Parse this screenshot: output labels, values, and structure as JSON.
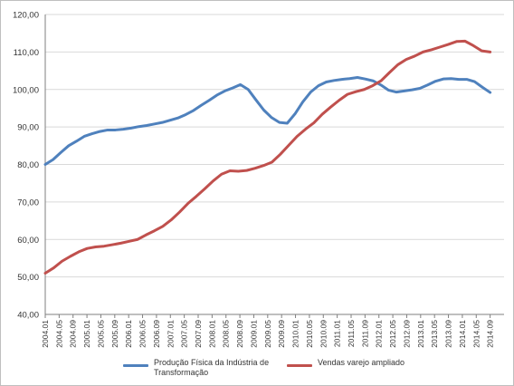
{
  "chart_data": {
    "type": "line",
    "title": "",
    "xlabel": "",
    "ylabel": "",
    "ylim": [
      40,
      120
    ],
    "yticks": [
      "40,00",
      "50,00",
      "60,00",
      "70,00",
      "80,00",
      "90,00",
      "100,00",
      "110,00",
      "120,00"
    ],
    "xticks": [
      "2004.01",
      "2004.05",
      "2004.09",
      "2005.01",
      "2005.05",
      "2005.09",
      "2006.01",
      "2006.05",
      "2006.09",
      "2007.01",
      "2007.05",
      "2007.09",
      "2008.01",
      "2008.05",
      "2008.09",
      "2009.01",
      "2009.05",
      "2009.09",
      "2010.01",
      "2010.05",
      "2010.09",
      "2011.01",
      "2011.05",
      "2011.09",
      "2012.01",
      "2012.05",
      "2012.09",
      "2013.01",
      "2013.05",
      "2013.09",
      "2014.01",
      "2014.05",
      "2014.09"
    ],
    "grid": "horizontal",
    "legend_position": "bottom",
    "series": [
      {
        "name": "Produção Física da Indústria de Transformação",
        "color": "#4f81bd",
        "values": [
          80.0,
          81.3,
          83.2,
          85.0,
          86.2,
          87.5,
          88.2,
          88.8,
          89.2,
          89.2,
          89.4,
          89.7,
          90.1,
          90.4,
          90.8,
          91.2,
          91.8,
          92.4,
          93.3,
          94.4,
          95.8,
          97.1,
          98.5,
          99.6,
          100.4,
          101.3,
          100.0,
          97.2,
          94.5,
          92.5,
          91.2,
          91.0,
          93.5,
          96.7,
          99.3,
          101.0,
          102.0,
          102.4,
          102.7,
          102.9,
          103.2,
          102.8,
          102.3,
          101.2,
          99.8,
          99.3,
          99.6,
          99.9,
          100.3,
          101.2,
          102.2,
          102.8,
          102.9,
          102.7,
          102.7,
          102.1,
          100.6,
          99.2
        ]
      },
      {
        "name": "Vendas varejo ampliado",
        "color": "#c0504d",
        "values": [
          51.0,
          52.4,
          54.2,
          55.5,
          56.7,
          57.6,
          58.0,
          58.2,
          58.6,
          59.0,
          59.5,
          60.0,
          61.2,
          62.3,
          63.5,
          65.2,
          67.3,
          69.6,
          71.5,
          73.5,
          75.6,
          77.4,
          78.3,
          78.2,
          78.4,
          79.0,
          79.7,
          80.6,
          82.7,
          85.1,
          87.5,
          89.4,
          91.1,
          93.4,
          95.3,
          97.1,
          98.7,
          99.4,
          100.0,
          101.0,
          102.3,
          104.5,
          106.6,
          108.0,
          108.9,
          110.0,
          110.6,
          111.3,
          112.0,
          112.8,
          112.9,
          111.7,
          110.3,
          110.0
        ]
      }
    ]
  }
}
